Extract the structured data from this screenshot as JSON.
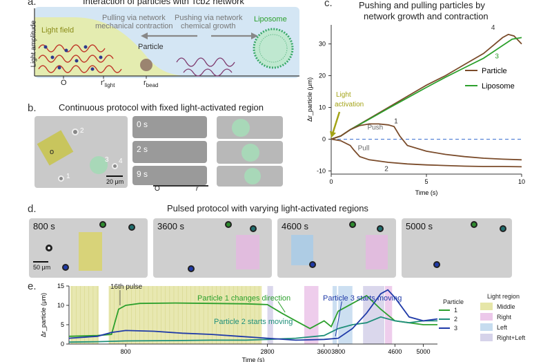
{
  "panel_a": {
    "letter": "a.",
    "title": "Interaction of particles with Tcb2 network",
    "light_field": "Light field",
    "pull_text_1": "Pulling via network",
    "pull_text_2": "mechanical contraction",
    "push_text_1": "Pushing via network",
    "push_text_2": "chemical growth",
    "particle": "Particle",
    "liposome": "Liposome",
    "ylabel": "Light amplitude",
    "x_o": "O",
    "x_rlight": "r'",
    "x_rlight_sub": "light",
    "x_rbead": "r",
    "x_rbead_sub": "bead"
  },
  "panel_b": {
    "letter": "b.",
    "title": "Continuous protocol with fixed light-activated region",
    "labels": [
      "2",
      "3",
      "4",
      "1"
    ],
    "o_label": "o",
    "scalebar": "20 μm",
    "times": [
      "0 s",
      "2 s",
      "9 s"
    ],
    "axis_o": "O",
    "axis_r": "r"
  },
  "panel_c": {
    "letter": "c.",
    "title_1": "Pushing and pulling particles by",
    "title_2": "network growth and contraction",
    "colors": {
      "particle": "#7a4b2a",
      "liposome": "#2ca02c",
      "zero": "#3a6fd0",
      "arrow": "#a3a316"
    },
    "annotations": {
      "light_1": "Light",
      "light_2": "activation",
      "push": "Push",
      "pull": "Pull",
      "n1": "1",
      "n2": "2",
      "n3": "3",
      "n4": "4"
    }
  },
  "panel_d": {
    "letter": "d.",
    "title": "Pulsed protocol with varying light-activated regions",
    "frames": [
      "800 s",
      "3600 s",
      "4600 s",
      "5000 s"
    ],
    "scalebar": "50 μm"
  },
  "panel_e": {
    "letter": "e.",
    "pulse_label": "16th pulse",
    "ann_1": "Particle 1 changes direction",
    "ann_2": "Particle 2 starts moving",
    "ann_3": "Particle 3 starts moving",
    "legend_particle_title": "Particle",
    "legend_light_title": "Light region",
    "light_regions": [
      {
        "name": "Middle",
        "color": "#e6e6a8"
      },
      {
        "name": "Right",
        "color": "#ecc8ea"
      },
      {
        "name": "Left",
        "color": "#c6dcef"
      },
      {
        "name": "Right+Left",
        "color": "#d6d3ea"
      }
    ]
  },
  "chart_data": [
    {
      "type": "line",
      "xlabel": "Time (s)",
      "ylabel": "Δr_particle (μm)",
      "xlim": [
        0,
        10
      ],
      "ylim": [
        -11,
        36
      ],
      "xticks": [
        0,
        5,
        10
      ],
      "yticks": [
        -10,
        0,
        10,
        20,
        30
      ],
      "legend": "right",
      "series": [
        {
          "name": "Particle",
          "label": "4",
          "color": "#7a4b2a",
          "x": [
            0,
            0.5,
            1,
            2,
            3,
            4,
            5,
            6,
            7,
            8,
            8.5,
            9,
            9.3,
            9.6,
            10
          ],
          "y": [
            0,
            1,
            3,
            6.5,
            10,
            13.5,
            17,
            20,
            23.5,
            27,
            29.5,
            32,
            33,
            32.5,
            30
          ]
        },
        {
          "name": "Liposome",
          "label": "3",
          "color": "#2ca02c",
          "x": [
            0,
            0.5,
            1,
            2,
            3,
            4,
            5,
            6,
            7,
            8,
            8.5,
            9,
            9.5,
            10
          ],
          "y": [
            0,
            1,
            3,
            6.3,
            9.7,
            13,
            16.3,
            19.5,
            22.5,
            25.5,
            27.5,
            29.5,
            31.5,
            32
          ]
        },
        {
          "label": "1",
          "color": "#7a4b2a",
          "x": [
            0,
            0.5,
            1,
            1.5,
            2,
            2.5,
            3,
            3.3,
            3.6,
            4,
            5,
            6,
            7,
            8,
            9,
            10
          ],
          "y": [
            0,
            1,
            3,
            4.3,
            4.8,
            4.8,
            4.5,
            4.0,
            1.0,
            -2.0,
            -3.8,
            -4.8,
            -5.5,
            -6.0,
            -6.3,
            -6.5
          ]
        },
        {
          "label": "2",
          "color": "#7a4b2a",
          "x": [
            0,
            0.5,
            1,
            1.2,
            1.5,
            2,
            3,
            4,
            5,
            6,
            7,
            8,
            9,
            10
          ],
          "y": [
            0,
            -0.5,
            -2,
            -3.5,
            -5.5,
            -6.5,
            -7.3,
            -7.8,
            -8.1,
            -8.3,
            -8.5,
            -8.6,
            -8.6,
            -8.7
          ]
        }
      ]
    },
    {
      "type": "line",
      "xlabel": "Time (s)",
      "ylabel": "Δr_particle (μm)",
      "xlim": [
        0,
        5200
      ],
      "ylim": [
        0,
        15
      ],
      "xticks": [
        800,
        2800,
        3600,
        3800,
        4600,
        5000
      ],
      "yticks": [
        0,
        5,
        10,
        15
      ],
      "legend": "right",
      "series": [
        {
          "name": "1",
          "color": "#2ca02c",
          "x": [
            0,
            400,
            600,
            700,
            800,
            1000,
            1500,
            2000,
            2500,
            2800,
            3000,
            3200,
            3400,
            3600,
            3700,
            3800,
            4000,
            4200,
            4400,
            4600,
            4800,
            5000,
            5200
          ],
          "y": [
            2,
            2.2,
            2.5,
            9,
            10,
            10.5,
            10.6,
            10.5,
            10.4,
            10.2,
            8,
            6,
            4,
            6,
            4.5,
            8.5,
            10.5,
            12.5,
            9,
            6,
            5.5,
            5,
            5
          ]
        },
        {
          "name": "2",
          "color": "#1f8f7a",
          "x": [
            0,
            400,
            800,
            1500,
            2000,
            2500,
            2800,
            3200,
            3600,
            3800,
            4000,
            4200,
            4400,
            4600,
            4800,
            5000,
            5200
          ],
          "y": [
            0.5,
            0.6,
            0.8,
            0.9,
            1,
            1,
            1.2,
            1.5,
            2.2,
            4,
            5,
            5.5,
            7,
            6,
            5.5,
            6,
            6
          ]
        },
        {
          "name": "3",
          "color": "#1f3aa8",
          "x": [
            0,
            400,
            600,
            800,
            1200,
            1600,
            2000,
            2400,
            2800,
            3200,
            3600,
            3800,
            4000,
            4200,
            4400,
            4500,
            4600,
            4800,
            5000,
            5200
          ],
          "y": [
            1.5,
            2,
            3,
            3.5,
            3.3,
            2.8,
            2.5,
            2,
            1.5,
            1,
            1.2,
            1.5,
            4,
            8,
            13,
            14,
            12,
            7,
            6,
            6.5
          ]
        }
      ]
    }
  ]
}
